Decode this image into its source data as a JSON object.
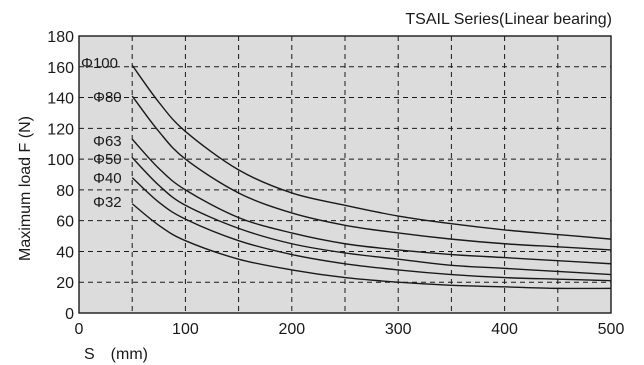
{
  "chart_data": {
    "type": "line",
    "title": "TSAIL Series(Linear bearing)",
    "xlabel": "S　(mm)",
    "ylabel": "Maximum load  F  (N)",
    "xlim": [
      0,
      500
    ],
    "ylim": [
      0,
      180
    ],
    "x_ticks": [
      0,
      100,
      200,
      300,
      400,
      500
    ],
    "y_ticks": [
      0,
      20,
      40,
      60,
      80,
      100,
      120,
      140,
      160,
      180
    ],
    "x_grid_step": 50,
    "y_grid_step": 20,
    "grid": true,
    "colors": {
      "plot_bg": "#dcdcdc",
      "line": "#1a1a1a",
      "grid": "#1a1a1a"
    },
    "series": [
      {
        "name": "Φ100",
        "x": [
          50,
          75,
          100,
          150,
          200,
          250,
          300,
          350,
          400,
          450,
          500
        ],
        "y": [
          161,
          137,
          118,
          93,
          78,
          70,
          63,
          58,
          54,
          51,
          48
        ]
      },
      {
        "name": "Φ80",
        "x": [
          50,
          75,
          100,
          150,
          200,
          250,
          300,
          350,
          400,
          450,
          500
        ],
        "y": [
          141,
          118,
          100,
          78,
          65,
          57,
          52,
          48,
          45,
          43,
          41
        ]
      },
      {
        "name": "Φ63",
        "x": [
          50,
          75,
          100,
          150,
          200,
          250,
          300,
          350,
          400,
          450,
          500
        ],
        "y": [
          113,
          94,
          80,
          62,
          52,
          45,
          41,
          38,
          36,
          34,
          32
        ]
      },
      {
        "name": "Φ50",
        "x": [
          50,
          75,
          100,
          150,
          200,
          250,
          300,
          350,
          400,
          450,
          500
        ],
        "y": [
          101,
          83,
          70,
          55,
          45,
          39,
          35,
          31,
          29,
          27,
          25
        ]
      },
      {
        "name": "Φ40",
        "x": [
          50,
          75,
          100,
          150,
          200,
          250,
          300,
          350,
          400,
          450,
          500
        ],
        "y": [
          88,
          72,
          61,
          47,
          38,
          32,
          28,
          25,
          23,
          22,
          21
        ]
      },
      {
        "name": "Φ32",
        "x": [
          50,
          75,
          100,
          150,
          200,
          250,
          300,
          350,
          400,
          450,
          500
        ],
        "y": [
          71,
          57,
          47,
          35,
          28,
          23,
          20,
          18,
          17,
          16,
          16
        ]
      }
    ]
  }
}
